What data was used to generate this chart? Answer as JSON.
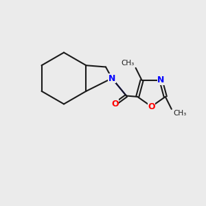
{
  "background_color": "#ebebeb",
  "bond_color": "#1a1a1a",
  "N_color": "#0000ff",
  "O_color": "#ff0000",
  "font_size": 9,
  "lw": 1.5,
  "atoms": {
    "N": {
      "color": "#0000ff"
    },
    "O": {
      "color": "#ff0000"
    },
    "C": {
      "color": "#1a1a1a"
    }
  }
}
